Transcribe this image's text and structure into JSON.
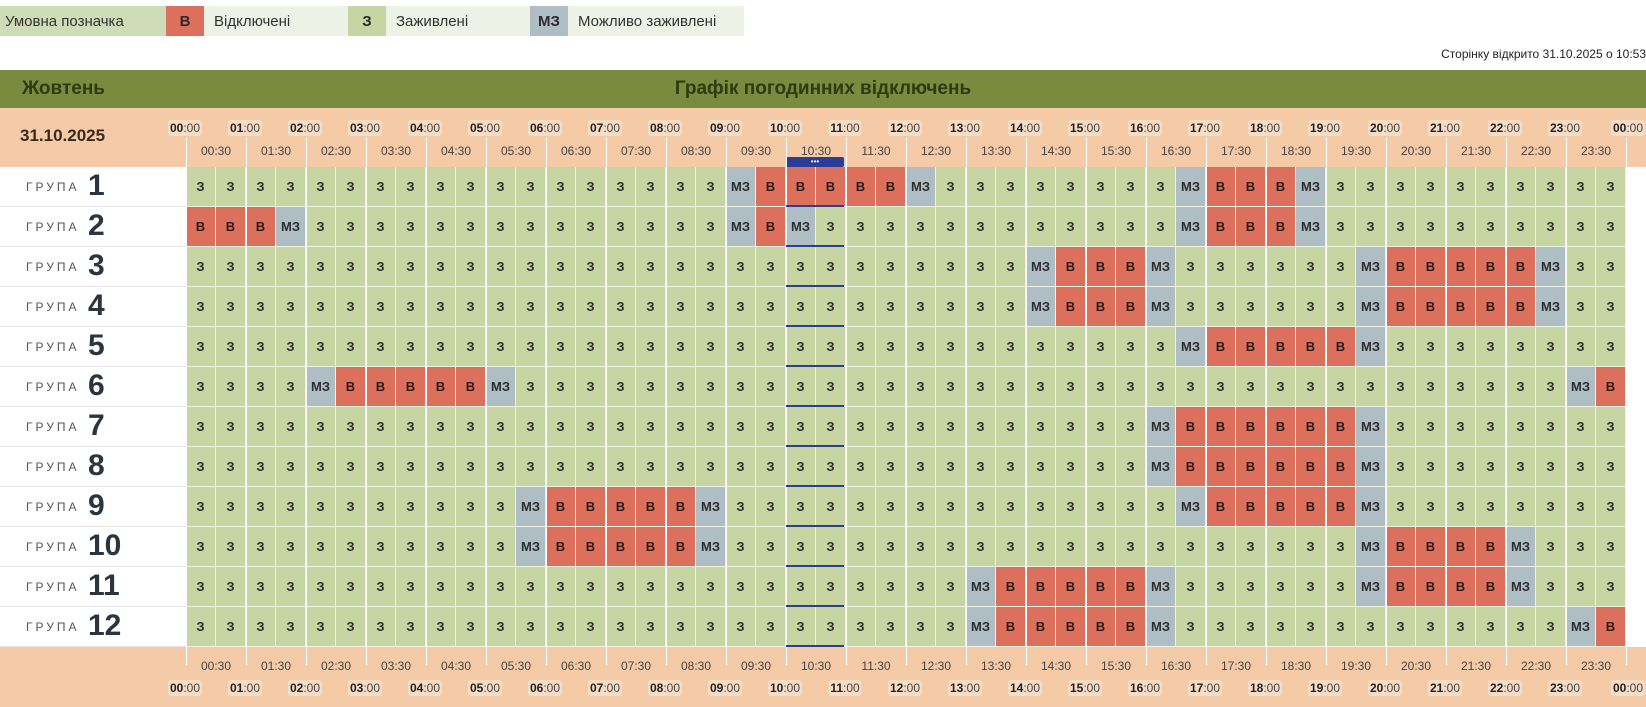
{
  "legend": {
    "title": "Умовна позначка",
    "items": [
      {
        "code": "В",
        "label": "Відключені",
        "color": "#dc705c"
      },
      {
        "code": "З",
        "label": "Заживлені",
        "color": "#c6d5a1"
      },
      {
        "code": "МЗ",
        "label": "Можливо заживлені",
        "color": "#afbec4"
      }
    ]
  },
  "page_opened": "Сторінку відкрито 31.10.2025 о 10:53",
  "header": {
    "month": "Жовтень",
    "title": "Графік погодинних відключень",
    "date": "31.10.2025"
  },
  "group_label": "ГРУПА",
  "hours": [
    "00",
    "01",
    "02",
    "03",
    "04",
    "05",
    "06",
    "07",
    "08",
    "09",
    "10",
    "11",
    "12",
    "13",
    "14",
    "15",
    "16",
    "17",
    "18",
    "19",
    "20",
    "21",
    "22",
    "23",
    "00"
  ],
  "hour_suffix": ":00",
  "half_hours": [
    "00:30",
    "01:30",
    "02:30",
    "03:30",
    "04:30",
    "05:30",
    "06:30",
    "07:30",
    "08:30",
    "09:30",
    "10:30",
    "11:30",
    "12:30",
    "13:30",
    "14:30",
    "15:30",
    "16:30",
    "17:30",
    "18:30",
    "19:30",
    "20:30",
    "21:30",
    "22:30",
    "23:30"
  ],
  "current_slot_marker": "•••",
  "groups": [
    {
      "number": "1",
      "slots": [
        "З",
        "З",
        "З",
        "З",
        "З",
        "З",
        "З",
        "З",
        "З",
        "З",
        "З",
        "З",
        "З",
        "З",
        "З",
        "З",
        "З",
        "З",
        "МЗ",
        "В",
        "В",
        "В",
        "В",
        "В",
        "МЗ",
        "З",
        "З",
        "З",
        "З",
        "З",
        "З",
        "З",
        "З",
        "МЗ",
        "В",
        "В",
        "В",
        "МЗ",
        "З",
        "З",
        "З",
        "З",
        "З",
        "З",
        "З",
        "З",
        "З",
        "З"
      ]
    },
    {
      "number": "2",
      "slots": [
        "В",
        "В",
        "В",
        "МЗ",
        "З",
        "З",
        "З",
        "З",
        "З",
        "З",
        "З",
        "З",
        "З",
        "З",
        "З",
        "З",
        "З",
        "З",
        "МЗ",
        "В",
        "МЗ",
        "З",
        "З",
        "З",
        "З",
        "З",
        "З",
        "З",
        "З",
        "З",
        "З",
        "З",
        "З",
        "МЗ",
        "В",
        "В",
        "В",
        "МЗ",
        "З",
        "З",
        "З",
        "З",
        "З",
        "З",
        "З",
        "З",
        "З",
        "З"
      ]
    },
    {
      "number": "3",
      "slots": [
        "З",
        "З",
        "З",
        "З",
        "З",
        "З",
        "З",
        "З",
        "З",
        "З",
        "З",
        "З",
        "З",
        "З",
        "З",
        "З",
        "З",
        "З",
        "З",
        "З",
        "З",
        "З",
        "З",
        "З",
        "З",
        "З",
        "З",
        "З",
        "МЗ",
        "В",
        "В",
        "В",
        "МЗ",
        "З",
        "З",
        "З",
        "З",
        "З",
        "З",
        "МЗ",
        "В",
        "В",
        "В",
        "В",
        "В",
        "МЗ",
        "З",
        "З"
      ]
    },
    {
      "number": "4",
      "slots": [
        "З",
        "З",
        "З",
        "З",
        "З",
        "З",
        "З",
        "З",
        "З",
        "З",
        "З",
        "З",
        "З",
        "З",
        "З",
        "З",
        "З",
        "З",
        "З",
        "З",
        "З",
        "З",
        "З",
        "З",
        "З",
        "З",
        "З",
        "З",
        "МЗ",
        "В",
        "В",
        "В",
        "МЗ",
        "З",
        "З",
        "З",
        "З",
        "З",
        "З",
        "МЗ",
        "В",
        "В",
        "В",
        "В",
        "В",
        "МЗ",
        "З",
        "З"
      ]
    },
    {
      "number": "5",
      "slots": [
        "З",
        "З",
        "З",
        "З",
        "З",
        "З",
        "З",
        "З",
        "З",
        "З",
        "З",
        "З",
        "З",
        "З",
        "З",
        "З",
        "З",
        "З",
        "З",
        "З",
        "З",
        "З",
        "З",
        "З",
        "З",
        "З",
        "З",
        "З",
        "З",
        "З",
        "З",
        "З",
        "З",
        "МЗ",
        "В",
        "В",
        "В",
        "В",
        "В",
        "МЗ",
        "З",
        "З",
        "З",
        "З",
        "З",
        "З",
        "З",
        "З"
      ]
    },
    {
      "number": "6",
      "slots": [
        "З",
        "З",
        "З",
        "З",
        "МЗ",
        "В",
        "В",
        "В",
        "В",
        "В",
        "МЗ",
        "З",
        "З",
        "З",
        "З",
        "З",
        "З",
        "З",
        "З",
        "З",
        "З",
        "З",
        "З",
        "З",
        "З",
        "З",
        "З",
        "З",
        "З",
        "З",
        "З",
        "З",
        "З",
        "З",
        "З",
        "З",
        "З",
        "З",
        "З",
        "З",
        "З",
        "З",
        "З",
        "З",
        "З",
        "З",
        "МЗ",
        "В"
      ]
    },
    {
      "number": "7",
      "slots": [
        "З",
        "З",
        "З",
        "З",
        "З",
        "З",
        "З",
        "З",
        "З",
        "З",
        "З",
        "З",
        "З",
        "З",
        "З",
        "З",
        "З",
        "З",
        "З",
        "З",
        "З",
        "З",
        "З",
        "З",
        "З",
        "З",
        "З",
        "З",
        "З",
        "З",
        "З",
        "З",
        "МЗ",
        "В",
        "В",
        "В",
        "В",
        "В",
        "В",
        "МЗ",
        "З",
        "З",
        "З",
        "З",
        "З",
        "З",
        "З",
        "З"
      ]
    },
    {
      "number": "8",
      "slots": [
        "З",
        "З",
        "З",
        "З",
        "З",
        "З",
        "З",
        "З",
        "З",
        "З",
        "З",
        "З",
        "З",
        "З",
        "З",
        "З",
        "З",
        "З",
        "З",
        "З",
        "З",
        "З",
        "З",
        "З",
        "З",
        "З",
        "З",
        "З",
        "З",
        "З",
        "З",
        "З",
        "МЗ",
        "В",
        "В",
        "В",
        "В",
        "В",
        "В",
        "МЗ",
        "З",
        "З",
        "З",
        "З",
        "З",
        "З",
        "З",
        "З"
      ]
    },
    {
      "number": "9",
      "slots": [
        "З",
        "З",
        "З",
        "З",
        "З",
        "З",
        "З",
        "З",
        "З",
        "З",
        "З",
        "МЗ",
        "В",
        "В",
        "В",
        "В",
        "В",
        "МЗ",
        "З",
        "З",
        "З",
        "З",
        "З",
        "З",
        "З",
        "З",
        "З",
        "З",
        "З",
        "З",
        "З",
        "З",
        "З",
        "МЗ",
        "В",
        "В",
        "В",
        "В",
        "В",
        "МЗ",
        "З",
        "З",
        "З",
        "З",
        "З",
        "З",
        "З",
        "З"
      ]
    },
    {
      "number": "10",
      "slots": [
        "З",
        "З",
        "З",
        "З",
        "З",
        "З",
        "З",
        "З",
        "З",
        "З",
        "З",
        "МЗ",
        "В",
        "В",
        "В",
        "В",
        "В",
        "МЗ",
        "З",
        "З",
        "З",
        "З",
        "З",
        "З",
        "З",
        "З",
        "З",
        "З",
        "З",
        "З",
        "З",
        "З",
        "З",
        "З",
        "З",
        "З",
        "З",
        "З",
        "З",
        "МЗ",
        "В",
        "В",
        "В",
        "В",
        "МЗ",
        "З",
        "З",
        "З"
      ]
    },
    {
      "number": "11",
      "slots": [
        "З",
        "З",
        "З",
        "З",
        "З",
        "З",
        "З",
        "З",
        "З",
        "З",
        "З",
        "З",
        "З",
        "З",
        "З",
        "З",
        "З",
        "З",
        "З",
        "З",
        "З",
        "З",
        "З",
        "З",
        "З",
        "З",
        "МЗ",
        "В",
        "В",
        "В",
        "В",
        "В",
        "МЗ",
        "З",
        "З",
        "З",
        "З",
        "З",
        "З",
        "МЗ",
        "В",
        "В",
        "В",
        "В",
        "МЗ",
        "З",
        "З",
        "З"
      ]
    },
    {
      "number": "12",
      "slots": [
        "З",
        "З",
        "З",
        "З",
        "З",
        "З",
        "З",
        "З",
        "З",
        "З",
        "З",
        "З",
        "З",
        "З",
        "З",
        "З",
        "З",
        "З",
        "З",
        "З",
        "З",
        "З",
        "З",
        "З",
        "З",
        "З",
        "МЗ",
        "В",
        "В",
        "В",
        "В",
        "В",
        "МЗ",
        "З",
        "З",
        "З",
        "З",
        "З",
        "З",
        "З",
        "З",
        "З",
        "З",
        "З",
        "З",
        "З",
        "МЗ",
        "В"
      ]
    }
  ]
}
